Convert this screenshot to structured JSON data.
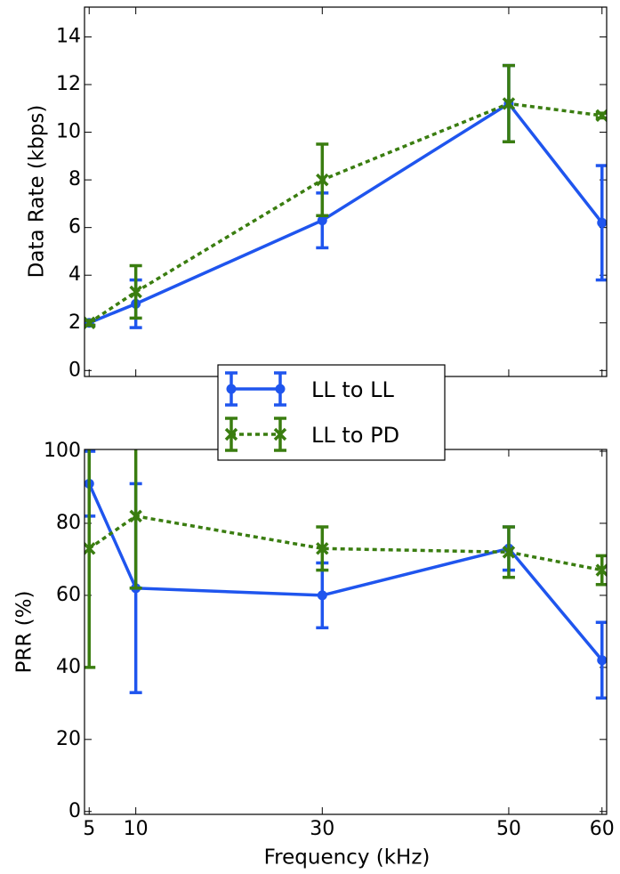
{
  "chart_data": [
    {
      "type": "line",
      "y_label": "Data Rate (kbps)",
      "x": [
        5,
        10,
        30,
        50,
        60
      ],
      "xlim": [
        4.5,
        60.5
      ],
      "xticks": [
        5,
        10,
        30,
        50,
        60
      ],
      "ylim": [
        -0.25,
        15.25
      ],
      "yticks": [
        0,
        2,
        4,
        6,
        8,
        10,
        12,
        14
      ],
      "series": [
        {
          "name": "LL to LL",
          "color": "#1f55ee",
          "linestyle": "solid",
          "marker": "circle",
          "values": [
            2.0,
            2.8,
            6.3,
            11.2,
            6.2
          ],
          "errors": [
            0.1,
            1.0,
            1.15,
            1.6,
            2.4
          ]
        },
        {
          "name": "LL to PD",
          "color": "#3a7d10",
          "linestyle": "dotted",
          "marker": "x",
          "values": [
            2.0,
            3.3,
            8.0,
            11.2,
            10.7
          ],
          "errors": [
            0.1,
            1.1,
            1.5,
            1.6,
            0.1
          ]
        }
      ]
    },
    {
      "type": "line",
      "y_label": "PRR (%)",
      "x_label": "Frequency (kHz)",
      "x": [
        5,
        10,
        30,
        50,
        60
      ],
      "xlim": [
        4.5,
        60.5
      ],
      "xticks": [
        5,
        10,
        30,
        50,
        60
      ],
      "ylim": [
        -0.8,
        100.5
      ],
      "yticks": [
        0,
        20,
        40,
        60,
        80,
        100
      ],
      "series": [
        {
          "color": "#1f55ee",
          "linestyle": "solid",
          "marker": "circle",
          "values": [
            91,
            62,
            60,
            73,
            42
          ],
          "errors": [
            9,
            29,
            9,
            6,
            10.5
          ]
        },
        {
          "color": "#3a7d10",
          "linestyle": "dotted",
          "marker": "x",
          "values": [
            73,
            82,
            73,
            72,
            67
          ],
          "errors": [
            33,
            20,
            6,
            7,
            4
          ]
        }
      ]
    }
  ]
}
